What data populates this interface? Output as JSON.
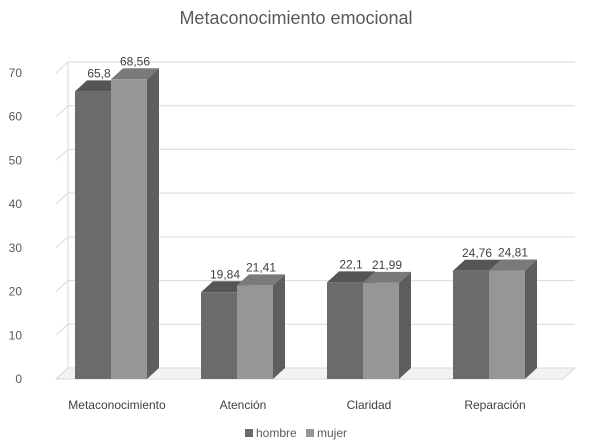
{
  "chart_data": {
    "type": "bar",
    "title": "Metaconocimiento emocional",
    "categories": [
      "Metaconocimiento",
      "Atención",
      "Claridad",
      "Reparación"
    ],
    "series": [
      {
        "name": "hombre",
        "values": [
          65.8,
          19.84,
          22.1,
          24.76
        ],
        "labels": [
          "65,8",
          "19,84",
          "22,1",
          "24,76"
        ],
        "color": "#6b6b6b"
      },
      {
        "name": "mujer",
        "values": [
          68.56,
          21.41,
          21.99,
          24.81
        ],
        "labels": [
          "68,56",
          "21,41",
          "21,99",
          "24,81"
        ],
        "color": "#969696"
      }
    ],
    "ylim": [
      0,
      70
    ],
    "yticks": [
      "0",
      "10",
      "20",
      "30",
      "40",
      "50",
      "60",
      "70"
    ],
    "grid": true,
    "legend_position": "bottom",
    "style": "3d-clustered-column"
  }
}
